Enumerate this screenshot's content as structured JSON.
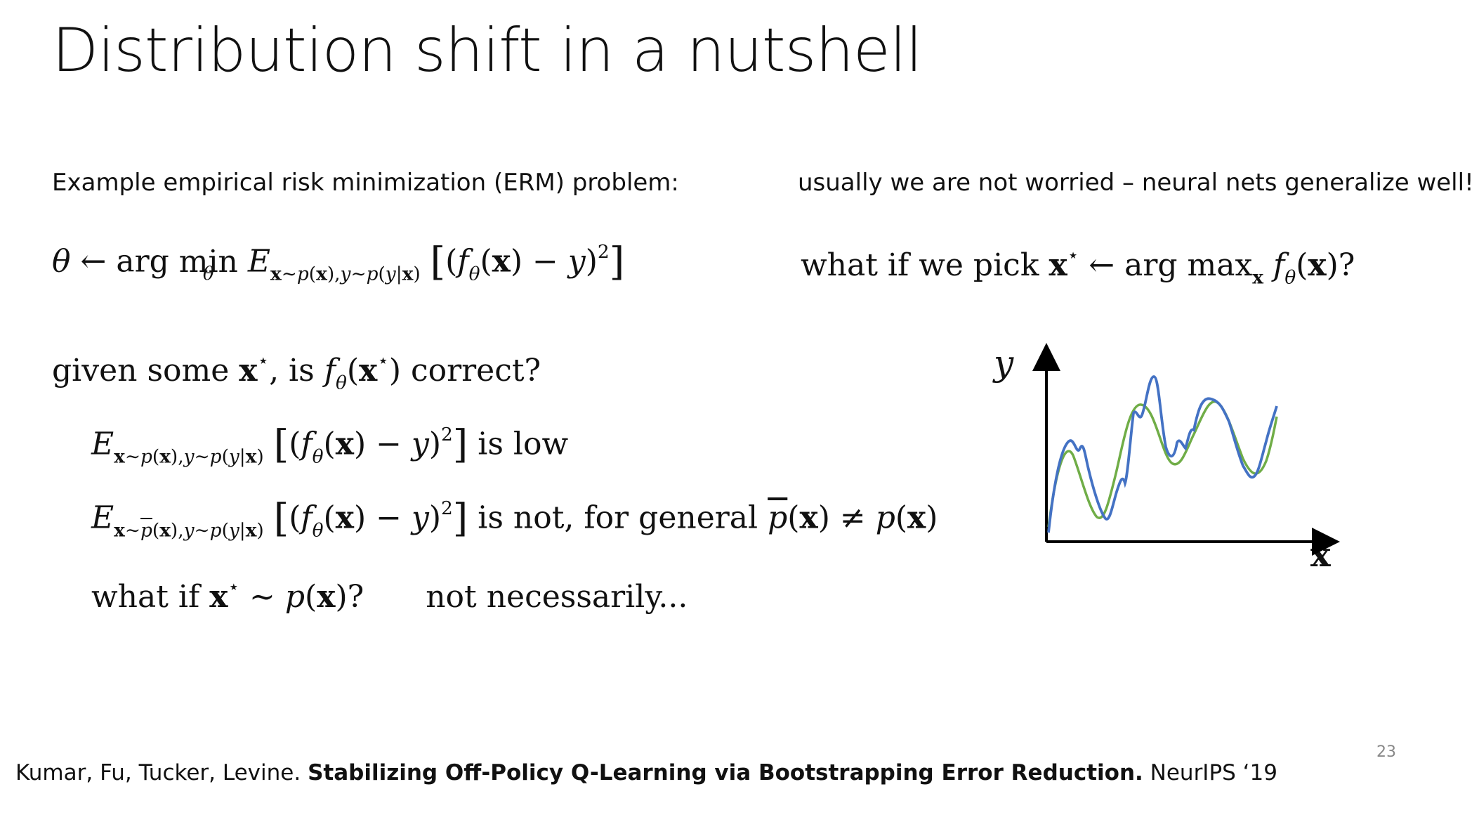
{
  "slide": {
    "title": "Distribution shift in a nutshell",
    "page_number": "23"
  },
  "left": {
    "erm_intro": "Example empirical risk minimization (ERM) problem:",
    "given_line": {
      "prefix": "given some",
      "mid": ", is",
      "suffix": "correct?"
    },
    "low_line_suffix": "is low",
    "not_line_suffix": "is not, for general",
    "whatif_line": {
      "prefix": "what if",
      "answer": "not necessarily..."
    }
  },
  "right": {
    "worry_text": "usually we are not worried – neural nets generalize well!",
    "pick_line_prefix": "what if we pick"
  },
  "chart": {
    "y_label": "y",
    "x_label": "x",
    "colors": {
      "true_curve": "#70ad47",
      "model_curve": "#4472c4",
      "axis": "#000000"
    }
  },
  "footer": {
    "authors": "Kumar, Fu, Tucker, Levine.",
    "paper_title": "Stabilizing Off-Policy Q-Learning via Bootstrapping Error Reduction.",
    "venue": "NeurIPS ‘19"
  }
}
